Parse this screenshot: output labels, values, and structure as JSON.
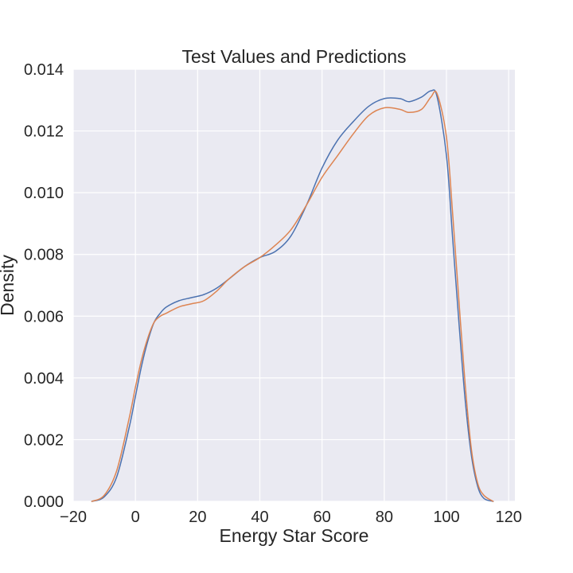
{
  "chart_data": {
    "type": "line",
    "title": "Test Values and Predictions",
    "xlabel": "Energy Star Score",
    "ylabel": "Density",
    "xlim": [
      -20,
      122
    ],
    "ylim": [
      0,
      0.014
    ],
    "xticks": [
      -20,
      0,
      20,
      40,
      60,
      80,
      100,
      120
    ],
    "xtick_labels": [
      "−20",
      "0",
      "20",
      "40",
      "60",
      "80",
      "100",
      "120"
    ],
    "yticks": [
      0,
      0.002,
      0.004,
      0.006,
      0.008,
      0.01,
      0.012,
      0.014
    ],
    "ytick_labels": [
      "0.000",
      "0.002",
      "0.004",
      "0.006",
      "0.008",
      "0.010",
      "0.012",
      "0.014"
    ],
    "grid": true,
    "background": "#eaeaf2",
    "series": [
      {
        "color": "#4c72b0",
        "x": [
          -14,
          -10,
          -6,
          -2,
          0,
          2,
          4,
          6,
          8,
          10,
          14,
          18,
          22,
          26,
          30,
          35,
          40,
          45,
          50,
          55,
          60,
          65,
          70,
          75,
          80,
          85,
          88,
          92,
          95,
          97,
          100,
          102,
          104,
          106,
          108,
          110,
          112,
          115
        ],
        "y": [
          0.0,
          0.00015,
          0.0008,
          0.0024,
          0.0034,
          0.0044,
          0.0052,
          0.0058,
          0.0061,
          0.0063,
          0.0065,
          0.0066,
          0.0067,
          0.0069,
          0.0072,
          0.0076,
          0.0079,
          0.0081,
          0.0086,
          0.0096,
          0.0108,
          0.0117,
          0.0123,
          0.0128,
          0.01305,
          0.01305,
          0.01295,
          0.0131,
          0.0133,
          0.0131,
          0.0112,
          0.0085,
          0.0058,
          0.0033,
          0.0015,
          0.0005,
          0.0001,
          0.0
        ]
      },
      {
        "color": "#dd8452",
        "x": [
          -14,
          -10,
          -6,
          -2,
          0,
          2,
          4,
          6,
          8,
          10,
          14,
          18,
          22,
          26,
          30,
          35,
          40,
          45,
          50,
          55,
          60,
          65,
          70,
          75,
          80,
          85,
          88,
          92,
          95,
          97,
          100,
          102,
          104,
          106,
          108,
          110,
          112,
          115
        ],
        "y": [
          0.0,
          0.0002,
          0.001,
          0.0027,
          0.0037,
          0.0046,
          0.0053,
          0.0058,
          0.006,
          0.0061,
          0.0063,
          0.0064,
          0.0065,
          0.0068,
          0.0072,
          0.0076,
          0.0079,
          0.0083,
          0.0088,
          0.0096,
          0.0105,
          0.0112,
          0.0119,
          0.0125,
          0.01275,
          0.0127,
          0.0126,
          0.0127,
          0.0131,
          0.0132,
          0.0118,
          0.0093,
          0.0065,
          0.0038,
          0.0017,
          0.0006,
          0.0002,
          0.0
        ]
      }
    ]
  }
}
